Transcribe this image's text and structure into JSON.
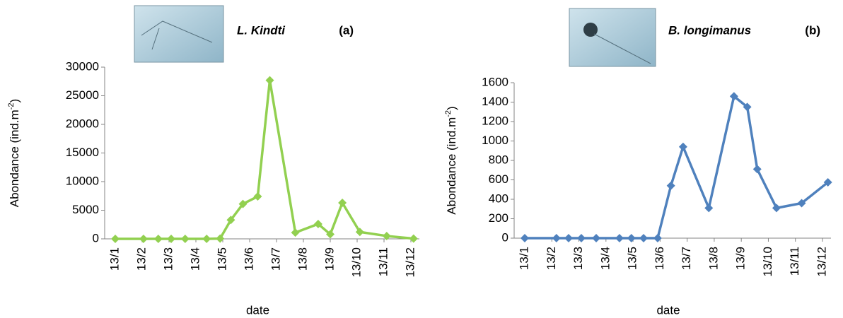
{
  "chart_data": [
    {
      "type": "line",
      "title": "L. Kindti",
      "panel_label": "(a)",
      "y_label": [
        "Abondance (ind.m",
        "-2",
        ")"
      ],
      "x_label": "date",
      "color": "#92d050",
      "xlim": [
        1,
        12
      ],
      "xticks": [
        {
          "value": 1,
          "label": "13/1"
        },
        {
          "value": 2,
          "label": "13/2"
        },
        {
          "value": 3,
          "label": "13/3"
        },
        {
          "value": 4,
          "label": "13/4"
        },
        {
          "value": 5,
          "label": "13/5"
        },
        {
          "value": 6,
          "label": "13/6"
        },
        {
          "value": 7,
          "label": "13/7"
        },
        {
          "value": 8,
          "label": "13/8"
        },
        {
          "value": 9,
          "label": "13/9"
        },
        {
          "value": 10,
          "label": "13/10"
        },
        {
          "value": 11,
          "label": "13/11"
        },
        {
          "value": 12,
          "label": "13/12"
        }
      ],
      "x": [
        1.0,
        2.05,
        2.6,
        3.08,
        3.6,
        4.4,
        4.9,
        5.3,
        5.75,
        6.3,
        6.75,
        7.7,
        8.55,
        9.0,
        9.45,
        10.1,
        11.1,
        12.1
      ],
      "values": [
        0,
        0,
        0,
        0,
        0,
        0,
        50,
        3300,
        6100,
        7400,
        27700,
        1100,
        2600,
        800,
        6300,
        1200,
        500,
        50
      ],
      "ylim": [
        0,
        30000
      ],
      "yticks": [
        0,
        5000,
        10000,
        15000,
        20000,
        25000,
        30000
      ]
    },
    {
      "type": "line",
      "title": "B. longimanus",
      "panel_label": "(b)",
      "y_label": [
        "Abondance (ind.m",
        "-2",
        ")"
      ],
      "x_label": "date",
      "color": "#4f81bd",
      "xlim": [
        1,
        12
      ],
      "xticks": [
        {
          "value": 1,
          "label": "13/1"
        },
        {
          "value": 2,
          "label": "13/2"
        },
        {
          "value": 3,
          "label": "13/3"
        },
        {
          "value": 4,
          "label": "13/4"
        },
        {
          "value": 5,
          "label": "13/5"
        },
        {
          "value": 6,
          "label": "13/6"
        },
        {
          "value": 7,
          "label": "13/7"
        },
        {
          "value": 8,
          "label": "13/8"
        },
        {
          "value": 9,
          "label": "13/9"
        },
        {
          "value": 10,
          "label": "13/10"
        },
        {
          "value": 11,
          "label": "13/11"
        },
        {
          "value": 12,
          "label": "13/12"
        }
      ],
      "x": [
        1.0,
        2.17,
        2.62,
        3.09,
        3.64,
        4.5,
        4.94,
        5.39,
        5.91,
        6.4,
        6.85,
        7.8,
        8.73,
        9.22,
        9.59,
        10.3,
        11.23,
        12.2
      ],
      "values": [
        0,
        0,
        0,
        0,
        0,
        0,
        0,
        0,
        0,
        540,
        940,
        310,
        1460,
        1350,
        710,
        310,
        360,
        575
      ],
      "ylim": [
        0,
        1600
      ],
      "yticks": [
        0,
        200,
        400,
        600,
        800,
        1000,
        1200,
        1400,
        1600
      ]
    }
  ]
}
